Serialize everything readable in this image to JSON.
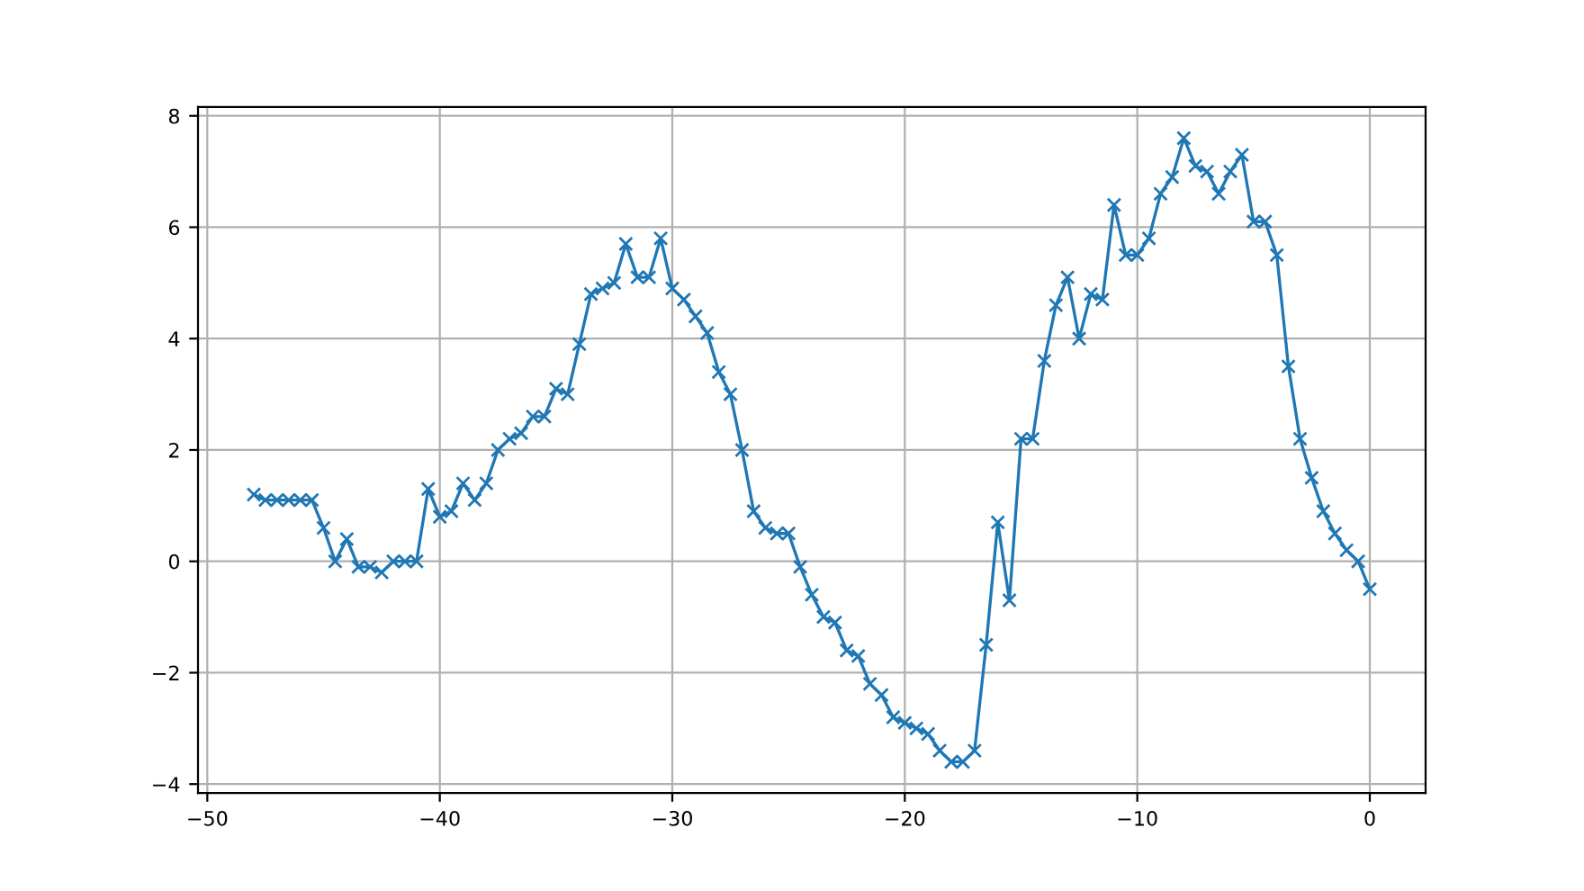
{
  "chart_data": {
    "type": "line",
    "marker": "cross",
    "grid": true,
    "color": "#1f77b4",
    "x": [
      -48,
      -47.5,
      -47,
      -46.5,
      -46,
      -45.5,
      -45,
      -44.5,
      -44,
      -43.5,
      -43,
      -42.5,
      -42,
      -41.5,
      -41,
      -40.5,
      -40,
      -39.5,
      -39,
      -38.5,
      -38,
      -37.5,
      -37,
      -36.5,
      -36,
      -35.5,
      -35,
      -34.5,
      -34,
      -33.5,
      -33,
      -32.5,
      -32,
      -31.5,
      -31,
      -30.5,
      -30,
      -29.5,
      -29,
      -28.5,
      -28,
      -27.5,
      -27,
      -26.5,
      -26,
      -25.5,
      -25,
      -24.5,
      -24,
      -23.5,
      -23,
      -22.5,
      -22,
      -21.5,
      -21,
      -20.5,
      -20,
      -19.5,
      -19,
      -18.5,
      -18,
      -17.5,
      -17,
      -16.5,
      -16,
      -15.5,
      -15,
      -14.5,
      -14,
      -13.5,
      -13,
      -12.5,
      -12,
      -11.5,
      -11,
      -10.5,
      -10,
      -9.5,
      -9,
      -8.5,
      -8,
      -7.5,
      -7,
      -6.5,
      -6,
      -5.5,
      -5,
      -4.5,
      -4,
      -3.5,
      -3,
      -2.5,
      -2,
      -1.5,
      -1,
      -0.5,
      0
    ],
    "values": [
      1.2,
      1.1,
      1.1,
      1.1,
      1.1,
      1.1,
      0.6,
      0.0,
      0.4,
      -0.1,
      -0.1,
      -0.2,
      0.0,
      0.0,
      0.0,
      1.3,
      0.8,
      0.9,
      1.4,
      1.1,
      1.4,
      2.0,
      2.2,
      2.3,
      2.6,
      2.6,
      3.1,
      3.0,
      3.9,
      4.8,
      4.9,
      5.0,
      5.7,
      5.1,
      5.1,
      5.8,
      4.9,
      4.7,
      4.4,
      4.1,
      3.4,
      3.0,
      2.0,
      0.9,
      0.6,
      0.5,
      0.5,
      -0.1,
      -0.6,
      -1.0,
      -1.1,
      -1.6,
      -1.7,
      -2.2,
      -2.4,
      -2.8,
      -2.9,
      -3.0,
      -3.1,
      -3.4,
      -3.6,
      -3.6,
      -3.4,
      -1.5,
      0.7,
      -0.7,
      2.2,
      2.2,
      3.6,
      4.6,
      5.1,
      4.0,
      4.8,
      4.7,
      6.4,
      5.5,
      5.5,
      5.8,
      6.6,
      6.9,
      7.6,
      7.1,
      7.0,
      6.6,
      7.0,
      7.3,
      6.1,
      6.1,
      5.5,
      3.5,
      2.2,
      1.5,
      0.9,
      0.5,
      0.2,
      0.0,
      -0.5
    ],
    "xlim": [
      -50.4,
      2.4
    ],
    "ylim": [
      -4.16,
      8.16
    ],
    "xticks": [
      {
        "value": -50,
        "label": "−50"
      },
      {
        "value": -40,
        "label": "−40"
      },
      {
        "value": -30,
        "label": "−30"
      },
      {
        "value": -20,
        "label": "−20"
      },
      {
        "value": -10,
        "label": "−10"
      },
      0
    ],
    "yticks": [
      {
        "value": -4,
        "label": "−4"
      },
      {
        "value": -2,
        "label": "−2"
      },
      0,
      2,
      4,
      6,
      8
    ]
  }
}
